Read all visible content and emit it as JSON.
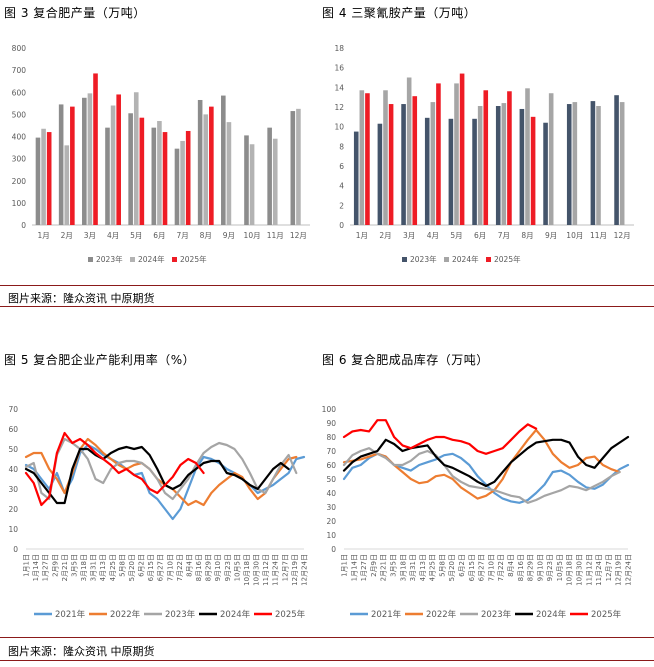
{
  "source_text": "图片来源：隆众资讯 中原期货",
  "chart_data": [
    {
      "type": "bar",
      "title": "图 3  复合肥产量（万吨）",
      "categories": [
        "1月",
        "2月",
        "3月",
        "4月",
        "5月",
        "6月",
        "7月",
        "8月",
        "9月",
        "10月",
        "11月",
        "12月"
      ],
      "ylim": [
        0,
        800
      ],
      "yticks": [
        0,
        100,
        200,
        300,
        400,
        500,
        600,
        700,
        800
      ],
      "series": [
        {
          "name": "2023年",
          "color": "#8c8c8c",
          "values": [
            395,
            545,
            575,
            440,
            505,
            440,
            345,
            565,
            585,
            405,
            440,
            515
          ]
        },
        {
          "name": "2024年",
          "color": "#b3b3b3",
          "values": [
            435,
            360,
            595,
            540,
            600,
            470,
            380,
            500,
            465,
            365,
            390,
            525
          ]
        },
        {
          "name": "2025年",
          "color": "#ee1c25",
          "values": [
            420,
            535,
            685,
            590,
            485,
            420,
            425,
            535,
            null,
            null,
            null,
            null
          ]
        }
      ]
    },
    {
      "type": "bar",
      "title": "图 4  三聚氰胺产量（万吨）",
      "categories": [
        "1月",
        "2月",
        "3月",
        "4月",
        "5月",
        "6月",
        "7月",
        "8月",
        "9月",
        "10月",
        "11月",
        "12月"
      ],
      "ylim": [
        0,
        18
      ],
      "yticks": [
        0,
        2,
        4,
        6,
        8,
        10,
        12,
        14,
        16,
        18
      ],
      "series": [
        {
          "name": "2023年",
          "color": "#44546a",
          "values": [
            9.5,
            10.3,
            12.3,
            10.9,
            10.8,
            10.8,
            12.1,
            11.8,
            10.4,
            12.3,
            12.6,
            13.2
          ]
        },
        {
          "name": "2024年",
          "color": "#a6a6a6",
          "values": [
            13.7,
            13.7,
            15.0,
            12.5,
            14.4,
            12.1,
            12.4,
            13.9,
            13.4,
            12.5,
            12.1,
            12.5
          ]
        },
        {
          "name": "2025年",
          "color": "#ee1c25",
          "values": [
            13.4,
            12.3,
            13.1,
            14.4,
            15.4,
            13.7,
            13.6,
            11.0,
            null,
            null,
            null,
            null
          ]
        }
      ]
    },
    {
      "type": "line",
      "title": "图 5  复合肥企业产能利用率（%）",
      "ylim": [
        0,
        70
      ],
      "yticks": [
        0,
        10,
        20,
        30,
        40,
        50,
        60,
        70
      ],
      "x_tick_labels": [
        "1月1日",
        "1月14日",
        "1月27日",
        "2月9日",
        "2月21日",
        "3月5日",
        "3月18日",
        "3月31日",
        "4月13日",
        "4月25日",
        "5月8日",
        "5月20日",
        "6月2日",
        "6月15日",
        "6月27日",
        "7月10日",
        "7月22日",
        "8月4日",
        "8月16日",
        "8月29日",
        "9月10日",
        "9月23日",
        "10月5日",
        "10月18日",
        "10月30日",
        "11月12日",
        "11月24日",
        "12月7日",
        "12月19日",
        "12月24日"
      ],
      "series": [
        {
          "name": "2021年",
          "color": "#5b9bd5",
          "values": [
            42,
            40,
            35,
            30,
            38,
            28,
            35,
            48,
            52,
            50,
            47,
            45,
            43,
            40,
            37,
            38,
            28,
            25,
            20,
            15,
            20,
            30,
            40,
            46,
            45,
            43,
            40,
            38,
            35,
            32,
            28,
            30,
            32,
            35,
            38,
            45,
            46
          ]
        },
        {
          "name": "2022年",
          "color": "#ed7d31",
          "values": [
            46,
            48,
            48,
            40,
            35,
            28,
            38,
            50,
            55,
            52,
            48,
            45,
            42,
            40,
            42,
            43,
            40,
            35,
            32,
            30,
            26,
            22,
            24,
            22,
            28,
            32,
            35,
            38,
            36,
            30,
            25,
            28,
            35,
            40,
            45,
            46
          ]
        },
        {
          "name": "2023年",
          "color": "#a5a5a5",
          "values": [
            41,
            43,
            28,
            25,
            47,
            55,
            53,
            50,
            45,
            35,
            33,
            40,
            43,
            44,
            44,
            43,
            40,
            35,
            28,
            25,
            30,
            35,
            42,
            48,
            51,
            53,
            52,
            50,
            45,
            38,
            30,
            28,
            35,
            42,
            47,
            38
          ]
        },
        {
          "name": "2024年",
          "color": "#000000",
          "values": [
            40,
            38,
            33,
            28,
            23,
            23,
            40,
            50,
            50,
            47,
            45,
            48,
            50,
            51,
            50,
            51,
            47,
            40,
            32,
            30,
            32,
            37,
            40,
            43,
            44,
            44,
            38,
            37,
            35,
            32,
            30,
            35,
            40,
            43,
            40
          ]
        },
        {
          "name": "2025年",
          "color": "#ff0000",
          "values": [
            38,
            33,
            22,
            26,
            48,
            58,
            53,
            55,
            52,
            48,
            45,
            42,
            38,
            40,
            37,
            35,
            30,
            28,
            32,
            36,
            42,
            45,
            43,
            38
          ]
        }
      ]
    },
    {
      "type": "line",
      "title": "图 6  复合肥成品库存（万吨）",
      "ylim": [
        0,
        100
      ],
      "yticks": [
        0,
        10,
        20,
        30,
        40,
        50,
        60,
        70,
        80,
        90,
        100
      ],
      "x_tick_labels": [
        "1月1日",
        "1月14日",
        "1月27日",
        "2月9日",
        "2月21日",
        "3月5日",
        "3月18日",
        "3月31日",
        "4月13日",
        "4月25日",
        "5月8日",
        "5月20日",
        "6月2日",
        "6月15日",
        "6月27日",
        "7月10日",
        "7月22日",
        "8月4日",
        "8月16日",
        "8月29日",
        "9月10日",
        "9月23日",
        "10月5日",
        "10月18日",
        "10月30日",
        "11月12日",
        "11月24日",
        "12月7日",
        "12月19日",
        "12月24日"
      ],
      "series": [
        {
          "name": "2021年",
          "color": "#5b9bd5",
          "values": [
            50,
            58,
            60,
            65,
            68,
            66,
            60,
            58,
            56,
            60,
            62,
            64,
            67,
            68,
            65,
            60,
            52,
            46,
            40,
            36,
            34,
            33,
            35,
            40,
            46,
            55,
            56,
            53,
            48,
            44,
            43,
            46,
            52,
            57,
            60
          ]
        },
        {
          "name": "2022年",
          "color": "#ed7d31",
          "values": [
            62,
            63,
            64,
            66,
            68,
            66,
            60,
            55,
            50,
            47,
            48,
            52,
            53,
            50,
            44,
            40,
            36,
            38,
            42,
            50,
            62,
            70,
            78,
            85,
            78,
            68,
            62,
            58,
            60,
            65,
            66,
            60,
            57,
            55
          ]
        },
        {
          "name": "2023年",
          "color": "#a5a5a5",
          "values": [
            60,
            67,
            70,
            72,
            68,
            65,
            60,
            60,
            63,
            68,
            70,
            67,
            60,
            52,
            48,
            45,
            44,
            43,
            42,
            40,
            38,
            37,
            33,
            35,
            38,
            40,
            42,
            45,
            44,
            42,
            45,
            48,
            52,
            55
          ]
        },
        {
          "name": "2024年",
          "color": "#000000",
          "values": [
            56,
            62,
            66,
            68,
            70,
            78,
            75,
            70,
            72,
            73,
            74,
            66,
            60,
            58,
            55,
            52,
            48,
            45,
            48,
            55,
            62,
            67,
            72,
            76,
            77,
            78,
            78,
            76,
            66,
            60,
            58,
            65,
            72,
            76,
            80
          ]
        },
        {
          "name": "2025年",
          "color": "#ff0000",
          "values": [
            80,
            84,
            85,
            84,
            92,
            92,
            80,
            74,
            72,
            75,
            78,
            80,
            80,
            78,
            77,
            75,
            70,
            68,
            70,
            72,
            78,
            84,
            89,
            86
          ]
        }
      ]
    }
  ]
}
